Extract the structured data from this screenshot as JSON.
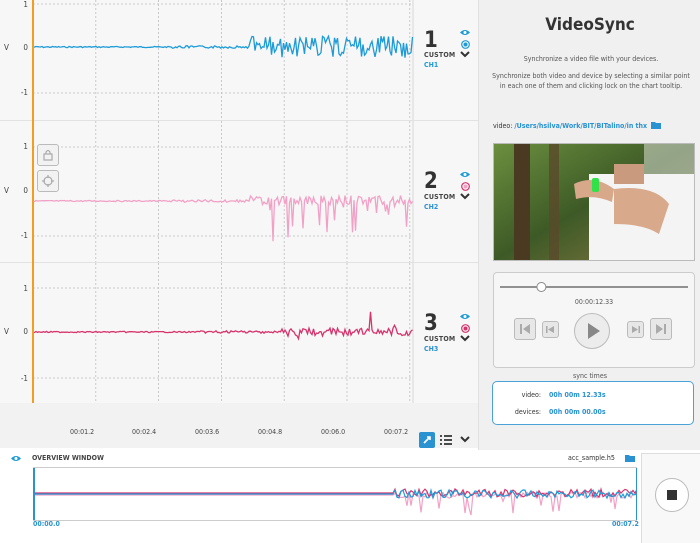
{
  "channels": [
    {
      "number": "1",
      "type": "CUSTOM",
      "name": "CH1",
      "color": "#1e9bd7",
      "yticks": [
        "1",
        "0",
        "-1"
      ],
      "ylabel": "V"
    },
    {
      "number": "2",
      "type": "CUSTOM",
      "name": "CH2",
      "color": "#f2a1c6",
      "yticks": [
        "1",
        "0",
        "-1"
      ],
      "ylabel": "V"
    },
    {
      "number": "3",
      "type": "CUSTOM",
      "name": "CH3",
      "color": "#d6336c",
      "yticks": [
        "1",
        "0",
        "-1"
      ],
      "ylabel": "V"
    }
  ],
  "time_ticks": [
    "00:01.2",
    "00:02.4",
    "00:03.6",
    "00:04.8",
    "00:06.0",
    "00:07.2"
  ],
  "icons": {
    "lock": "lock-icon",
    "target": "crosshair-icon",
    "eye": "eye-icon",
    "radio": "radio-icon",
    "chevron": "chevron-down-icon",
    "folder": "folder-icon",
    "list": "list-icon",
    "cursor": "cursor-icon",
    "play": "play-icon",
    "stop": "stop-icon"
  },
  "videosync": {
    "title": "VideoSync",
    "subtitle": "Synchronize a video file with your devices.",
    "instructions": "Synchronize both video and device by selecting a similar point in each one of them and clicking lock on the chart tooltip.",
    "video_label": "video:",
    "video_path": "/Users/hsilva/Work/BIT/BITalino/in thx",
    "player_time": "00:00:12.33",
    "player_progress": 0.22,
    "sync_title": "sync times",
    "sync_video_label": "video:",
    "sync_video_value": "00h 00m 12.33s",
    "sync_devices_label": "devices:",
    "sync_devices_value": "00h 00m 00.00s"
  },
  "overview": {
    "title": "OVERVIEW WINDOW",
    "file": "acc_sample.h5",
    "start": "00:00.0",
    "end": "00:07.2"
  },
  "colors": {
    "accent": "#2a92d1",
    "cursor": "#f0a020",
    "ch1": "#1e9bd7",
    "ch2": "#f2a1c6",
    "ch3": "#d6336c"
  }
}
